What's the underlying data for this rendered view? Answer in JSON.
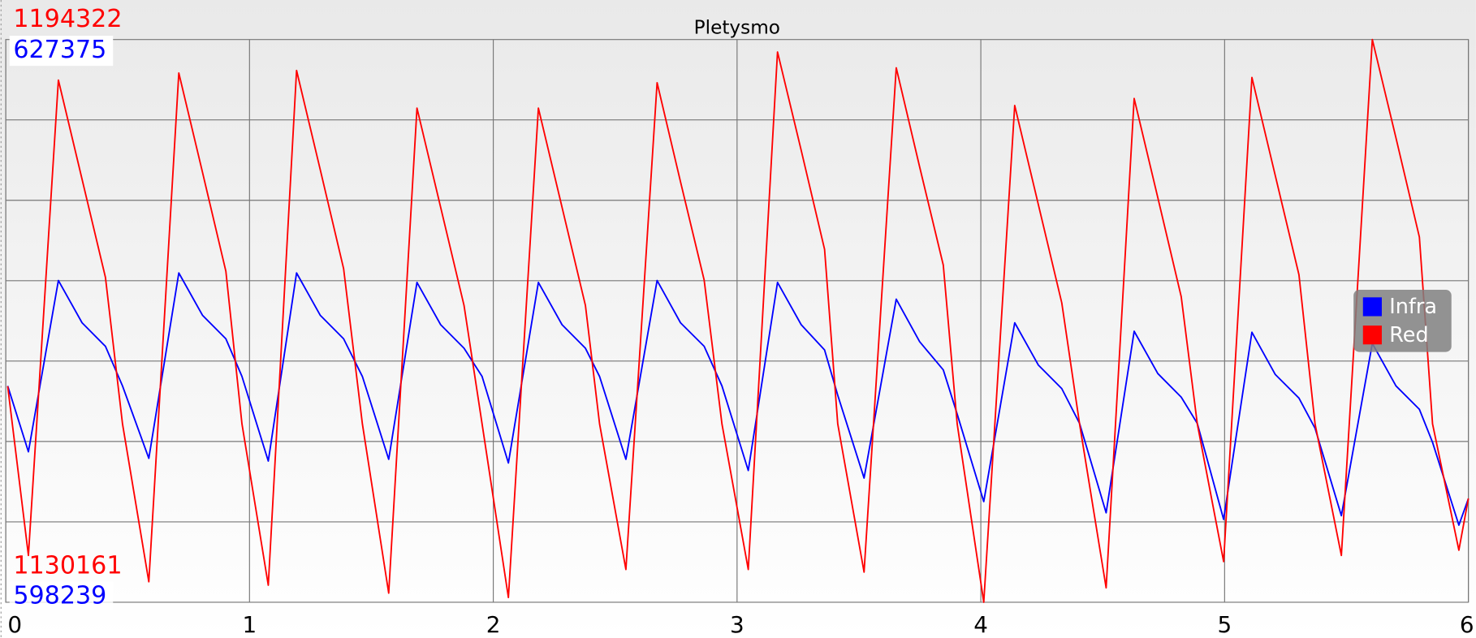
{
  "chart_data": {
    "type": "line",
    "title": "Pletysmo",
    "xlim": [
      0,
      6
    ],
    "xticks": [
      0,
      1,
      2,
      3,
      4,
      5,
      6
    ],
    "ylim": [
      1130161,
      1194322
    ],
    "yticks": [
      1139327,
      1148493,
      1157659,
      1166825,
      1175991,
      1185156
    ],
    "y2lim": [
      598239,
      627375
    ],
    "grid": true,
    "legend": "right",
    "x": [
      0.008,
      0.093,
      0.216,
      0.313,
      0.409,
      0.479,
      0.587,
      0.71,
      0.807,
      0.903,
      0.969,
      1.077,
      1.193,
      1.29,
      1.386,
      1.463,
      1.571,
      1.687,
      1.784,
      1.88,
      1.954,
      2.062,
      2.185,
      2.282,
      2.378,
      2.436,
      2.544,
      2.672,
      2.768,
      2.865,
      2.938,
      3.046,
      3.166,
      3.263,
      3.359,
      3.413,
      3.521,
      3.653,
      3.749,
      3.846,
      3.903,
      4.012,
      4.139,
      4.236,
      4.332,
      4.405,
      4.514,
      4.629,
      4.726,
      4.822,
      4.888,
      4.996,
      5.112,
      5.208,
      5.305,
      5.371,
      5.479,
      5.606,
      5.703,
      5.799,
      5.853,
      5.961,
      6
    ],
    "series": [
      {
        "name": "Infra",
        "color": "#0000ff",
        "axis": "y2",
        "values": [
          609440,
          606030,
          614900,
          612710,
          611490,
          609440,
          605690,
          615290,
          613100,
          611880,
          609930,
          605550,
          615290,
          613100,
          611880,
          609930,
          605640,
          614800,
          612610,
          611390,
          609930,
          605450,
          614800,
          612610,
          611390,
          609930,
          605640,
          614900,
          612710,
          611490,
          609440,
          605060,
          614800,
          612610,
          611300,
          608960,
          604670,
          613930,
          611730,
          610270,
          607980,
          603450,
          612710,
          610520,
          609300,
          607500,
          602870,
          612270,
          610080,
          608860,
          607500,
          602530,
          612220,
          610030,
          608810,
          607250,
          602720,
          611640,
          609440,
          608230,
          606520,
          602230,
          603600
        ]
      },
      {
        "name": "Red",
        "color": "#ff0000",
        "axis": "y",
        "values": [
          1154800,
          1135500,
          1189700,
          1178400,
          1167200,
          1150500,
          1132500,
          1190500,
          1179200,
          1167900,
          1150500,
          1132100,
          1190800,
          1179500,
          1168200,
          1150500,
          1131200,
          1186500,
          1175200,
          1164000,
          1150500,
          1130700,
          1186500,
          1175200,
          1164000,
          1150500,
          1133900,
          1189400,
          1178100,
          1166900,
          1150500,
          1133900,
          1192900,
          1181700,
          1170400,
          1150500,
          1133600,
          1191100,
          1179800,
          1168600,
          1150500,
          1130161,
          1186800,
          1175500,
          1164300,
          1150500,
          1131800,
          1187600,
          1176300,
          1165000,
          1150500,
          1134800,
          1190000,
          1178800,
          1167500,
          1150500,
          1135500,
          1194322,
          1183100,
          1171800,
          1150500,
          1136100,
          1142000
        ]
      }
    ]
  }
}
